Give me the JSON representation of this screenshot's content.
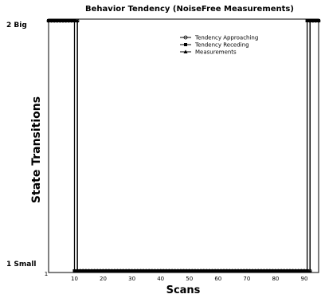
{
  "chart_data": {
    "type": "line",
    "title": "Behavior Tendency (NoiseFree Measurements)",
    "xlabel": "Scans",
    "ylabel": "State Transitions",
    "xlim": [
      1,
      95
    ],
    "xticks": [
      10,
      20,
      30,
      40,
      50,
      60,
      70,
      80,
      90
    ],
    "y_categories": [
      "1 Small",
      "2 Big"
    ],
    "legend_position": "top-right",
    "grid": false,
    "series": [
      {
        "name": "Tendency Approaching",
        "marker": "circle",
        "points": [
          [
            1,
            2
          ],
          [
            11,
            2
          ],
          [
            11,
            1
          ],
          [
            92,
            1
          ],
          [
            92,
            2
          ],
          [
            95,
            2
          ]
        ]
      },
      {
        "name": "Tendency Receding",
        "marker": "square",
        "points": [
          [
            1,
            2
          ],
          [
            10,
            2
          ],
          [
            10,
            1
          ],
          [
            91,
            1
          ],
          [
            91,
            2
          ],
          [
            95,
            2
          ]
        ]
      },
      {
        "name": "Measurements",
        "marker": "triangle",
        "points": [
          [
            1,
            2
          ],
          [
            11,
            2
          ],
          [
            11,
            1
          ],
          [
            92,
            1
          ],
          [
            92,
            2
          ],
          [
            95,
            2
          ]
        ]
      }
    ]
  }
}
